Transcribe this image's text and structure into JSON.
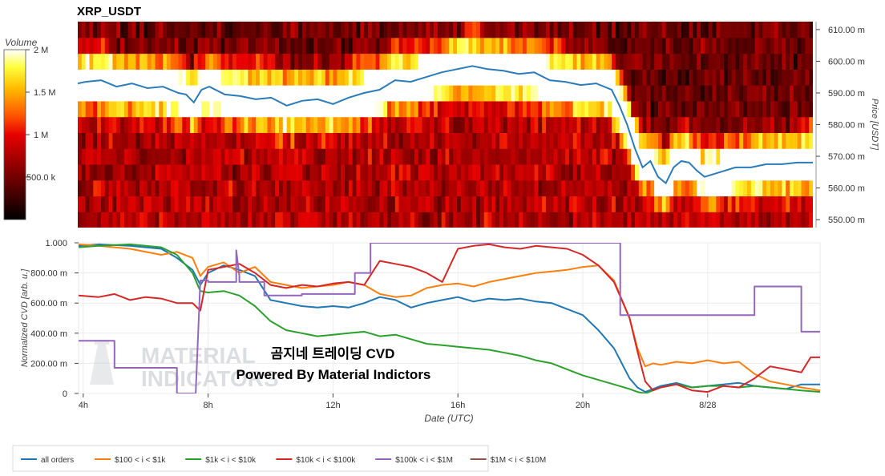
{
  "title": "XRP_USDT",
  "colors": {
    "all_orders": "#1f77b4",
    "s100_1k": "#ff7f0e",
    "s1k_10k": "#2ca02c",
    "s10k_100k": "#d62728",
    "s100k_1m": "#9467bd",
    "s1m_10m": "#8c564b"
  },
  "watermark": {
    "line1": "MATERIAL",
    "line2": "INDICATORS"
  },
  "overlay_text": {
    "line1": "곰지네 트레이딩 CVD",
    "line2": "Powered By Material Indictors"
  },
  "chart_data": [
    {
      "type": "heatmap",
      "title": "XRP_USDT",
      "colorbar": {
        "label": "Volume",
        "ticks": [
          "2 M",
          "1.5 M",
          "1 M",
          "500.0 k"
        ],
        "range": [
          0,
          2000000
        ],
        "colormap": "hot"
      },
      "ylabel": "Price [USDT]",
      "yticks": [
        "610.00 m",
        "600.00 m",
        "590.00 m",
        "580.00 m",
        "570.00 m",
        "560.00 m",
        "550.00 m"
      ],
      "ylim": [
        0.5475,
        0.6125
      ],
      "xlim": [
        3.75,
        27.5
      ],
      "price_bins": [
        0.55,
        0.555,
        0.56,
        0.565,
        0.57,
        0.575,
        0.58,
        0.585,
        0.59,
        0.595,
        0.6,
        0.605,
        0.61
      ],
      "price_series": {
        "name": "price",
        "x": [
          3.75,
          4.0,
          4.5,
          5.0,
          5.5,
          6.0,
          6.5,
          7.0,
          7.25,
          7.5,
          7.75,
          8.0,
          8.5,
          9.0,
          9.5,
          10.0,
          10.5,
          11.0,
          11.5,
          12.0,
          12.5,
          13.0,
          13.5,
          14.0,
          14.5,
          15.0,
          15.5,
          16.0,
          16.5,
          17.0,
          17.5,
          18.0,
          18.5,
          19.0,
          19.5,
          20.0,
          20.5,
          21.0,
          21.25,
          21.5,
          21.75,
          22.0,
          22.25,
          22.5,
          22.75,
          23.0,
          23.25,
          23.5,
          23.75,
          24.0,
          24.5,
          25.0,
          25.5,
          26.0,
          26.5,
          27.0,
          27.5
        ],
        "y": [
          0.593,
          0.5935,
          0.594,
          0.592,
          0.593,
          0.5915,
          0.592,
          0.59,
          0.5895,
          0.587,
          0.591,
          0.592,
          0.5895,
          0.589,
          0.588,
          0.5885,
          0.586,
          0.5875,
          0.588,
          0.5865,
          0.5885,
          0.59,
          0.591,
          0.594,
          0.5935,
          0.595,
          0.5965,
          0.5975,
          0.5985,
          0.5975,
          0.597,
          0.596,
          0.5965,
          0.594,
          0.5935,
          0.5925,
          0.593,
          0.591,
          0.586,
          0.58,
          0.5725,
          0.5665,
          0.5685,
          0.5635,
          0.5615,
          0.5665,
          0.5685,
          0.568,
          0.5655,
          0.5635,
          0.565,
          0.5665,
          0.5665,
          0.5675,
          0.5675,
          0.568,
          0.568
        ]
      }
    },
    {
      "type": "line",
      "xlabel": "Date (UTC)",
      "ylabel": "Normalized CVD [arb. u.]",
      "ylim": [
        0,
        1
      ],
      "xlim": [
        3.85,
        27.6
      ],
      "yticks": [
        "0",
        "200.00 m",
        "400.00 m",
        "600.00 m",
        "800.00 m",
        "1.000"
      ],
      "xticks": [
        {
          "value": 4,
          "label": "4h"
        },
        {
          "value": 8,
          "label": "8h"
        },
        {
          "value": 12,
          "label": "12h"
        },
        {
          "value": 16,
          "label": "16h"
        },
        {
          "value": 20,
          "label": "20h"
        },
        {
          "value": 24,
          "label": "8/28"
        }
      ],
      "series": [
        {
          "name": "all orders",
          "colorKey": "all_orders",
          "x": [
            3.85,
            4.5,
            5.5,
            6.5,
            7.0,
            7.5,
            7.75,
            8.0,
            8.5,
            9.0,
            9.5,
            10.0,
            10.5,
            11.0,
            11.5,
            12.0,
            12.5,
            13.0,
            13.5,
            14.0,
            14.5,
            15.0,
            15.5,
            16.0,
            16.5,
            17.0,
            17.5,
            18.0,
            18.5,
            19.0,
            19.5,
            20.0,
            20.5,
            21.0,
            21.5,
            21.75,
            22.0,
            22.25,
            22.5,
            23.0,
            23.5,
            24.0,
            24.5,
            25.0,
            25.5,
            26.0,
            26.5,
            27.0,
            27.6
          ],
          "y": [
            0.98,
            0.99,
            0.98,
            0.96,
            0.9,
            0.82,
            0.72,
            0.8,
            0.85,
            0.82,
            0.78,
            0.62,
            0.6,
            0.58,
            0.57,
            0.58,
            0.57,
            0.6,
            0.64,
            0.62,
            0.57,
            0.6,
            0.62,
            0.64,
            0.61,
            0.63,
            0.62,
            0.63,
            0.61,
            0.6,
            0.56,
            0.52,
            0.42,
            0.3,
            0.1,
            0.04,
            0.01,
            0.03,
            0.05,
            0.07,
            0.04,
            0.05,
            0.06,
            0.07,
            0.05,
            0.04,
            0.03,
            0.06,
            0.06
          ]
        },
        {
          "name": "$100 < i < $1k",
          "colorKey": "s100_1k",
          "x": [
            3.85,
            4.5,
            5.5,
            6.5,
            7.0,
            7.5,
            7.75,
            8.0,
            8.5,
            9.0,
            9.5,
            10.0,
            10.5,
            11.0,
            11.5,
            12.0,
            12.5,
            13.0,
            13.5,
            14.0,
            14.5,
            15.0,
            15.5,
            16.0,
            16.5,
            17.0,
            17.5,
            18.0,
            18.5,
            19.0,
            19.5,
            20.0,
            20.5,
            21.0,
            21.5,
            21.75,
            22.0,
            22.25,
            22.5,
            23.0,
            23.5,
            24.0,
            24.5,
            25.0,
            25.5,
            26.0,
            26.5,
            27.0,
            27.6
          ],
          "y": [
            0.99,
            0.98,
            0.96,
            0.92,
            0.94,
            0.9,
            0.78,
            0.84,
            0.87,
            0.8,
            0.84,
            0.74,
            0.72,
            0.7,
            0.71,
            0.72,
            0.74,
            0.72,
            0.66,
            0.64,
            0.65,
            0.7,
            0.72,
            0.73,
            0.71,
            0.74,
            0.76,
            0.78,
            0.8,
            0.81,
            0.82,
            0.84,
            0.85,
            0.75,
            0.5,
            0.3,
            0.18,
            0.2,
            0.19,
            0.21,
            0.2,
            0.22,
            0.2,
            0.21,
            0.13,
            0.08,
            0.06,
            0.04,
            0.02
          ]
        },
        {
          "name": "$1k < i < $10k",
          "colorKey": "s1k_10k",
          "x": [
            3.85,
            4.5,
            5.5,
            6.5,
            7.0,
            7.5,
            7.75,
            8.0,
            8.5,
            9.0,
            9.5,
            10.0,
            10.5,
            11.0,
            11.5,
            12.0,
            12.5,
            13.0,
            13.5,
            14.0,
            14.5,
            15.0,
            15.5,
            16.0,
            16.5,
            17.0,
            17.5,
            18.0,
            18.5,
            19.0,
            19.5,
            20.0,
            20.5,
            21.0,
            21.5,
            21.75,
            22.0,
            22.25,
            22.5,
            23.0,
            23.5,
            24.0,
            24.5,
            25.0,
            25.5,
            26.0,
            26.5,
            27.0,
            27.6
          ],
          "y": [
            0.97,
            0.98,
            0.99,
            0.97,
            0.92,
            0.8,
            0.68,
            0.67,
            0.68,
            0.65,
            0.58,
            0.48,
            0.42,
            0.4,
            0.38,
            0.39,
            0.4,
            0.41,
            0.38,
            0.39,
            0.36,
            0.33,
            0.32,
            0.31,
            0.3,
            0.29,
            0.27,
            0.25,
            0.22,
            0.2,
            0.16,
            0.12,
            0.09,
            0.06,
            0.03,
            0.01,
            0.0,
            0.02,
            0.04,
            0.06,
            0.04,
            0.05,
            0.05,
            0.04,
            0.05,
            0.04,
            0.03,
            0.02,
            0.01
          ]
        },
        {
          "name": "$10k < i < $100k",
          "colorKey": "s10k_100k",
          "x": [
            3.85,
            4.5,
            5.0,
            5.5,
            6.0,
            6.5,
            7.0,
            7.5,
            7.75,
            8.0,
            8.5,
            9.0,
            9.5,
            10.0,
            10.5,
            11.0,
            11.5,
            12.0,
            12.5,
            13.0,
            13.5,
            14.0,
            14.5,
            15.0,
            15.5,
            16.0,
            16.5,
            17.0,
            17.5,
            18.0,
            18.5,
            19.0,
            19.5,
            20.0,
            20.5,
            21.0,
            21.5,
            21.75,
            22.0,
            22.25,
            22.5,
            23.0,
            23.5,
            24.0,
            24.5,
            25.0,
            25.5,
            26.0,
            26.5,
            27.0,
            27.3,
            27.6
          ],
          "y": [
            0.65,
            0.64,
            0.66,
            0.62,
            0.64,
            0.63,
            0.6,
            0.6,
            0.55,
            0.82,
            0.84,
            0.86,
            0.8,
            0.72,
            0.7,
            0.72,
            0.71,
            0.73,
            0.74,
            0.72,
            0.88,
            0.86,
            0.84,
            0.8,
            0.74,
            0.96,
            0.98,
            0.99,
            0.97,
            0.96,
            0.98,
            0.97,
            0.96,
            0.92,
            0.85,
            0.74,
            0.5,
            0.28,
            0.08,
            0.02,
            0.04,
            0.06,
            0.02,
            0.01,
            0.05,
            0.04,
            0.1,
            0.18,
            0.16,
            0.14,
            0.24,
            0.24
          ]
        },
        {
          "name": "$100k < i < $1M",
          "colorKey": "s100k_1m",
          "x": [
            3.85,
            5.0,
            5.0,
            7.0,
            7.0,
            7.6,
            7.75,
            8.0,
            8.0,
            8.9,
            8.9,
            9.0,
            9.0,
            9.3,
            9.5,
            9.8,
            9.8,
            11.0,
            11.0,
            12.7,
            12.7,
            13.2,
            13.2,
            21.2,
            21.2,
            25.5,
            25.5,
            27.0,
            27.0,
            27.6
          ],
          "y": [
            0.35,
            0.35,
            0.17,
            0.17,
            0.0,
            0.0,
            0.75,
            0.75,
            0.74,
            0.74,
            0.95,
            0.78,
            0.74,
            0.74,
            0.74,
            0.74,
            0.65,
            0.65,
            0.66,
            0.66,
            0.8,
            0.8,
            1.0,
            1.0,
            0.52,
            0.52,
            0.71,
            0.71,
            0.41,
            0.41
          ]
        },
        {
          "name": "$1M < i < $10M",
          "colorKey": "s1m_10m",
          "x": [],
          "y": []
        }
      ]
    }
  ]
}
